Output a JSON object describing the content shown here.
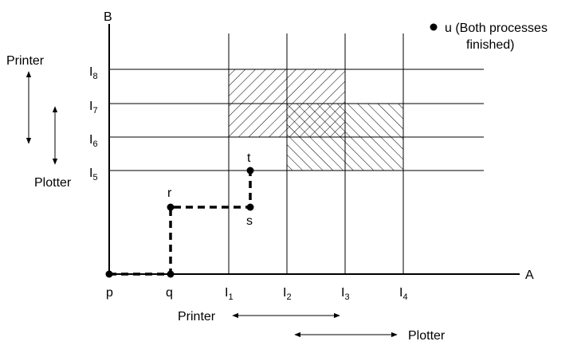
{
  "axes": {
    "x_label": "A",
    "y_label": "B"
  },
  "points": [
    {
      "id": "p",
      "label": "p"
    },
    {
      "id": "q",
      "label": "q"
    },
    {
      "id": "r",
      "label": "r"
    },
    {
      "id": "s",
      "label": "s"
    },
    {
      "id": "t",
      "label": "t"
    }
  ],
  "x_ticks": [
    {
      "main": "I",
      "sub": "1"
    },
    {
      "main": "I",
      "sub": "2"
    },
    {
      "main": "I",
      "sub": "3"
    },
    {
      "main": "I",
      "sub": "4"
    }
  ],
  "y_ticks": [
    {
      "main": "I",
      "sub": "5"
    },
    {
      "main": "I",
      "sub": "6"
    },
    {
      "main": "I",
      "sub": "7"
    },
    {
      "main": "I",
      "sub": "8"
    }
  ],
  "legend": {
    "line1": "u (Both processes",
    "line2": "finished)"
  },
  "resources": {
    "left_printer": "Printer",
    "left_plotter": "Plotter",
    "bottom_printer": "Printer",
    "bottom_plotter": "Plotter"
  }
}
